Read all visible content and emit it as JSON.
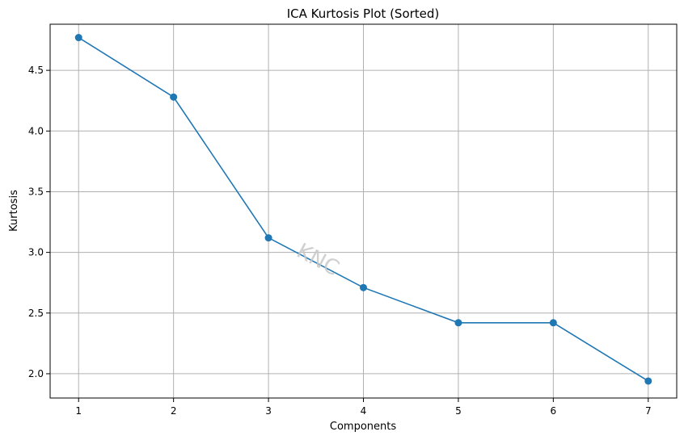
{
  "chart_data": {
    "type": "line",
    "title": "ICA Kurtosis Plot (Sorted)",
    "xlabel": "Components",
    "ylabel": "Kurtosis",
    "x": [
      1,
      2,
      3,
      4,
      5,
      6,
      7
    ],
    "series": [
      {
        "values": [
          4.77,
          4.28,
          3.12,
          2.71,
          2.42,
          2.42,
          1.94
        ],
        "color": "#1f77b4",
        "marker": "circle"
      }
    ],
    "xticks": [
      1,
      2,
      3,
      4,
      5,
      6,
      7
    ],
    "yticks": [
      2.0,
      2.5,
      3.0,
      3.5,
      4.0,
      4.5
    ],
    "ytick_labels": [
      "2.0",
      "2.5",
      "3.0",
      "3.5",
      "4.0",
      "4.5"
    ],
    "xlim": [
      0.7,
      7.3
    ],
    "ylim": [
      1.8,
      4.88
    ],
    "grid": true,
    "watermark": "KNC"
  }
}
